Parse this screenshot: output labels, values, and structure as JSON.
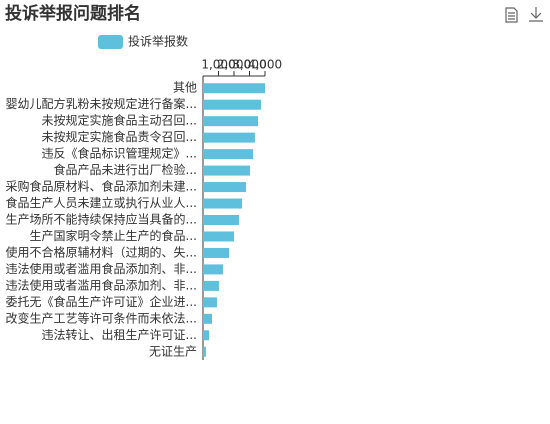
{
  "chart_data": {
    "type": "bar",
    "orientation": "horizontal",
    "title": "投诉举报问题排名",
    "categories": [
      "其他",
      "婴幼儿配方乳粉未按规定进行备案...",
      "未按规定实施食品主动召回...",
      "未按规定实施食品责令召回...",
      "违反《食品标识管理规定》...",
      "食品产品未进行出厂检验...",
      "采购食品原材料、食品添加剂未建...",
      "食品生产人员未建立或执行从业人...",
      "生产场所不能持续保持应当具备的...",
      "生产国家明令禁止生产的食品...",
      "使用不合格原辅材料（过期的、失...",
      "违法使用或者滥用食品添加剂、非...",
      "违法使用或者滥用食品添加剂、非...",
      "委托无《食品生产许可证》企业进...",
      "改变生产工艺等许可条件而未依法...",
      "违法转让、出租生产许可证...",
      "无证生产"
    ],
    "series": [
      {
        "name": "投诉举报数",
        "color": "#5ec0dc",
        "values": [
          4000,
          3740,
          3550,
          3350,
          3230,
          3030,
          2770,
          2520,
          2320,
          2000,
          1680,
          1290,
          1030,
          900,
          580,
          390,
          190
        ]
      }
    ],
    "xlim": [
      0,
      4000
    ],
    "xticks": [
      {
        "value": 1000,
        "label": "1,000"
      },
      {
        "value": 2000,
        "label": "2,000"
      },
      {
        "value": 3000,
        "label": "3,000"
      },
      {
        "value": 4000,
        "label": "4,000"
      }
    ]
  }
}
